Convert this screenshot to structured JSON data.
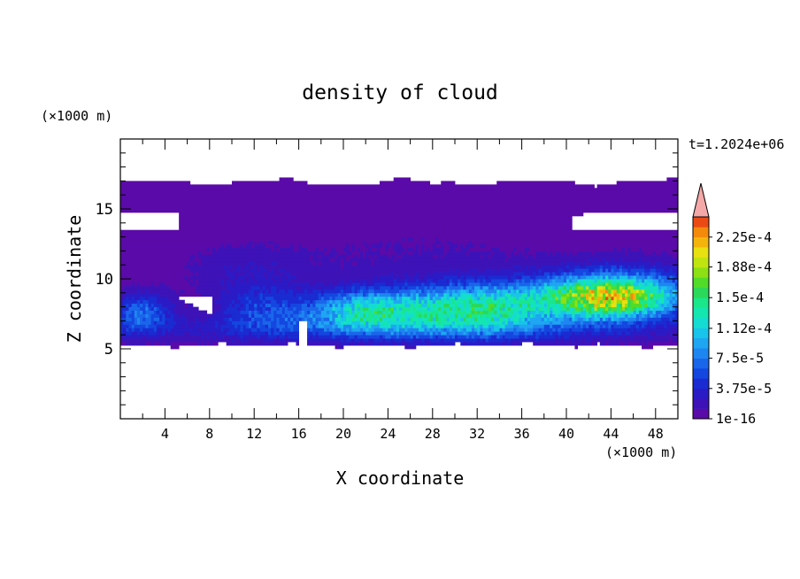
{
  "chart_data": {
    "type": "heatmap",
    "title": "density of cloud",
    "xlabel": "X coordinate",
    "ylabel": "Z coordinate",
    "x_unit": "(×1000 m)",
    "y_unit": "(×1000 m)",
    "time_label": "t=1.2024e+06",
    "xlim": [
      0,
      50
    ],
    "ylim": [
      0,
      20
    ],
    "x_ticks": [
      "4",
      "8",
      "12",
      "16",
      "20",
      "24",
      "28",
      "32",
      "36",
      "40",
      "44",
      "48"
    ],
    "y_ticks": [
      "5",
      "10",
      "15"
    ],
    "x_tick_values": [
      4,
      8,
      12,
      16,
      20,
      24,
      28,
      32,
      36,
      40,
      44,
      48
    ],
    "y_tick_values": [
      5,
      10,
      15
    ],
    "colorbar": {
      "labels": [
        "1e-16",
        "3.75e-5",
        "7.5e-5",
        "1.12e-4",
        "1.5e-4",
        "1.88e-4",
        "2.25e-4"
      ],
      "label_values": [
        0,
        3.75e-05,
        7.5e-05,
        0.000112,
        0.00015,
        0.000188,
        0.000225
      ],
      "levels": [
        0,
        1.25e-05,
        2.5e-05,
        3.75e-05,
        5e-05,
        6.25e-05,
        7.5e-05,
        8.75e-05,
        0.0001,
        0.000112,
        0.000125,
        0.000138,
        0.00015,
        0.000162,
        0.000175,
        0.000188,
        0.0002,
        0.000212,
        0.000225,
        0.000238
      ],
      "colors": [
        "#5a0aa8",
        "#3d13b8",
        "#2a1bc6",
        "#1a2bd2",
        "#1446e0",
        "#1a66ea",
        "#1e86f0",
        "#1ea6f2",
        "#18c4ea",
        "#14dcd2",
        "#14e6b0",
        "#1ae68a",
        "#2ad85a",
        "#50dc28",
        "#8ce014",
        "#c0e410",
        "#e8e010",
        "#f4b40c",
        "#f48a0c",
        "#ec4a14"
      ],
      "overflow_color": "#f4a8a8"
    },
    "fields": {
      "cloud_base": 5.3,
      "cloud_top_range": [
        16.5,
        17.2
      ],
      "peak_density": 0.0002,
      "peak_location": [
        44,
        8.8
      ]
    }
  }
}
